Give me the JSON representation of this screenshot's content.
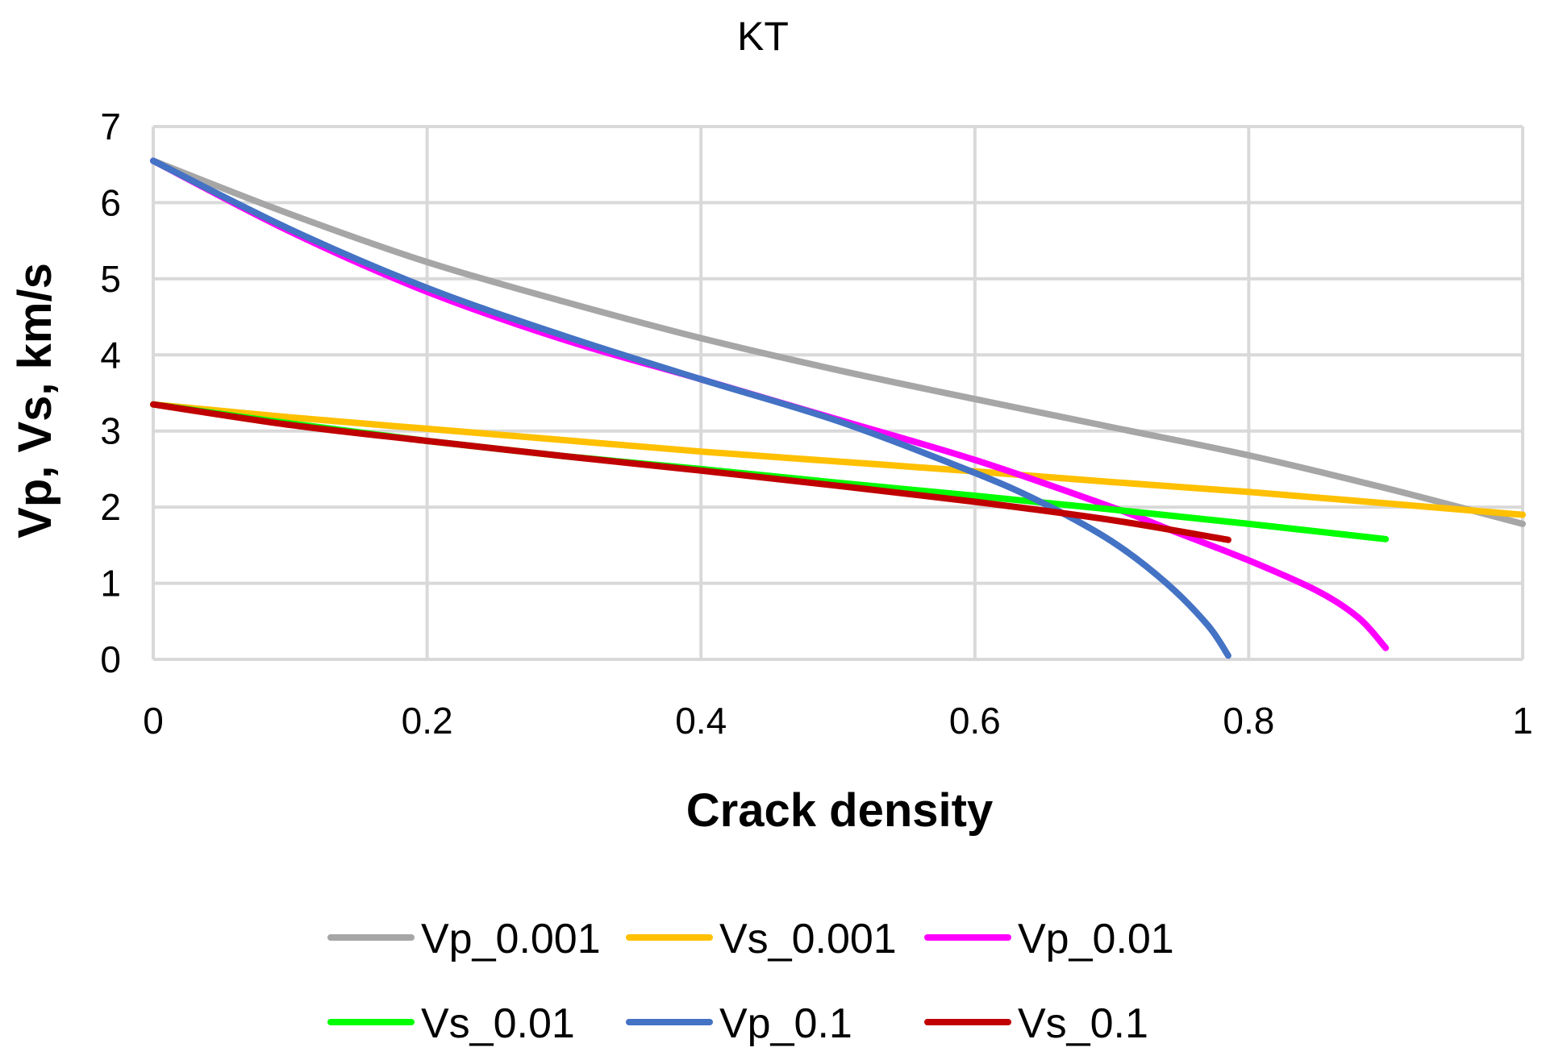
{
  "chart_data": {
    "type": "line",
    "title": "KT",
    "xlabel": "Crack density",
    "ylabel": "Vp, Vs, km/s",
    "xlim": [
      0,
      1
    ],
    "ylim": [
      0,
      7
    ],
    "xticks": [
      "0",
      "0.2",
      "0.4",
      "0.6",
      "0.8",
      "1"
    ],
    "yticks": [
      "0",
      "1",
      "2",
      "3",
      "4",
      "5",
      "6",
      "7"
    ],
    "grid": true,
    "legend_position": "bottom",
    "series": [
      {
        "name": "Vp_0.001",
        "color": "#a6a6a6",
        "x": [
          0,
          0.1,
          0.2,
          0.3,
          0.4,
          0.5,
          0.6,
          0.7,
          0.8,
          0.9,
          1.0
        ],
        "y": [
          6.55,
          5.85,
          5.22,
          4.7,
          4.22,
          3.8,
          3.42,
          3.05,
          2.68,
          2.25,
          1.78
        ]
      },
      {
        "name": "Vs_0.001",
        "color": "#ffc000",
        "x": [
          0,
          0.1,
          0.2,
          0.3,
          0.4,
          0.5,
          0.6,
          0.7,
          0.8,
          0.9,
          1.0
        ],
        "y": [
          3.35,
          3.18,
          3.03,
          2.88,
          2.73,
          2.6,
          2.47,
          2.33,
          2.2,
          2.05,
          1.9
        ]
      },
      {
        "name": "Vp_0.01",
        "color": "#ff00ff",
        "x": [
          0,
          0.1,
          0.2,
          0.3,
          0.4,
          0.5,
          0.6,
          0.7,
          0.75,
          0.8,
          0.85,
          0.88,
          0.9
        ],
        "y": [
          6.55,
          5.62,
          4.83,
          4.2,
          3.68,
          3.15,
          2.62,
          2.0,
          1.65,
          1.3,
          0.9,
          0.55,
          0.15
        ]
      },
      {
        "name": "Vs_0.01",
        "color": "#00ff00",
        "x": [
          0,
          0.1,
          0.2,
          0.3,
          0.4,
          0.5,
          0.6,
          0.7,
          0.8,
          0.9
        ],
        "y": [
          3.35,
          3.1,
          2.87,
          2.67,
          2.5,
          2.32,
          2.15,
          1.97,
          1.78,
          1.58
        ]
      },
      {
        "name": "Vp_0.1",
        "color": "#4472c4",
        "x": [
          0,
          0.1,
          0.2,
          0.3,
          0.4,
          0.5,
          0.6,
          0.65,
          0.7,
          0.74,
          0.77,
          0.785
        ],
        "y": [
          6.55,
          5.65,
          4.88,
          4.25,
          3.68,
          3.13,
          2.45,
          2.05,
          1.55,
          1.0,
          0.45,
          0.05
        ]
      },
      {
        "name": "Vs_0.1",
        "color": "#c00000",
        "x": [
          0,
          0.1,
          0.2,
          0.3,
          0.4,
          0.5,
          0.6,
          0.7,
          0.785
        ],
        "y": [
          3.35,
          3.08,
          2.87,
          2.67,
          2.48,
          2.28,
          2.07,
          1.83,
          1.57
        ]
      }
    ]
  }
}
